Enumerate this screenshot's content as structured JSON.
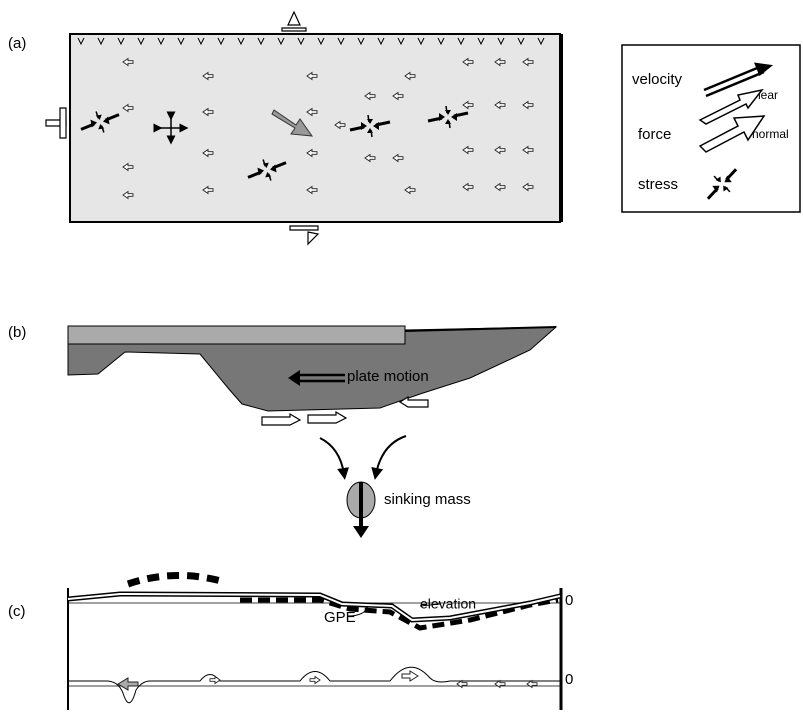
{
  "panel_a": {
    "label": "(a)",
    "legend": {
      "velocity": "velocity",
      "shear": "shear",
      "force": "force",
      "normal": "normal",
      "stress": "stress"
    }
  },
  "panel_b": {
    "label": "(b)",
    "plate_motion": "plate motion",
    "sinking_mass": "sinking mass"
  },
  "panel_c": {
    "label": "(c)",
    "elevation": "elevation",
    "gpe": "GPE",
    "zero_labels": [
      "0",
      "0"
    ]
  }
}
